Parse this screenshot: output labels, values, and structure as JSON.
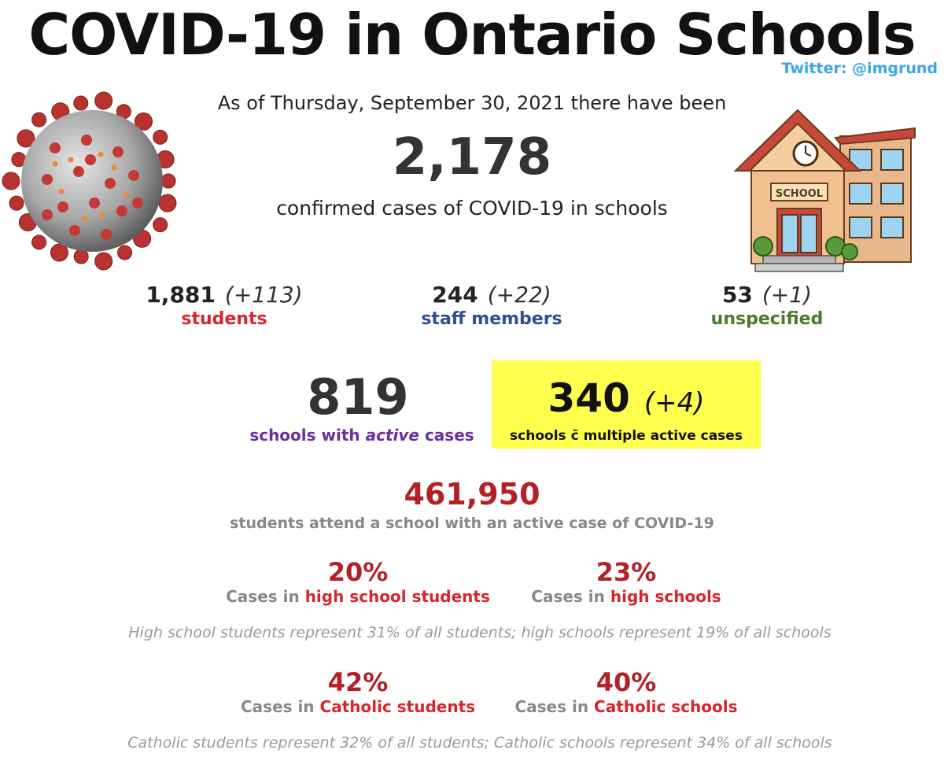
{
  "header": {
    "title": "COVID-19 in Ontario Schools",
    "credit": "Twitter: @imgrund"
  },
  "summary": {
    "as_of": "As of Thursday, September 30, 2021 there have been",
    "total_cases": "2,178",
    "total_label": "confirmed cases of COVID-19 in schools"
  },
  "breakdown": [
    {
      "value": "1,881",
      "delta": "(+113)",
      "label": "students",
      "color": "#d7262b"
    },
    {
      "value": "244",
      "delta": "(+22)",
      "label": "staff members",
      "color": "#2f4f94"
    },
    {
      "value": "53",
      "delta": "(+1)",
      "label": "unspecified",
      "color": "#4a7a2a"
    }
  ],
  "schools": {
    "active_value": "819",
    "active_label_pre": "schools with ",
    "active_label_em": "active",
    "active_label_post": " cases",
    "multiple_value": "340",
    "multiple_delta": "(+4)",
    "multiple_label": "schools c̄ multiple active cases",
    "highlight_color": "#ffff4d"
  },
  "attendance": {
    "value": "461,950",
    "label": "students attend a school with an active case of COVID-19"
  },
  "high_school": {
    "left": {
      "pct": "20%",
      "prefix": "Cases in ",
      "highlight": "high school students"
    },
    "right": {
      "pct": "23%",
      "prefix": "Cases in ",
      "highlight": "high schools"
    },
    "note": "High school students represent 31% of all students; high schools represent 19% of all schools"
  },
  "catholic": {
    "left": {
      "pct": "42%",
      "prefix": "Cases in ",
      "highlight": "Catholic students"
    },
    "right": {
      "pct": "40%",
      "prefix": "Cases in ",
      "highlight": "Catholic schools"
    },
    "note": "Catholic students represent 32% of all students; Catholic schools represent 34% of all schools"
  },
  "images": {
    "virus": "coronavirus-illustration",
    "school": "school-building-illustration"
  }
}
